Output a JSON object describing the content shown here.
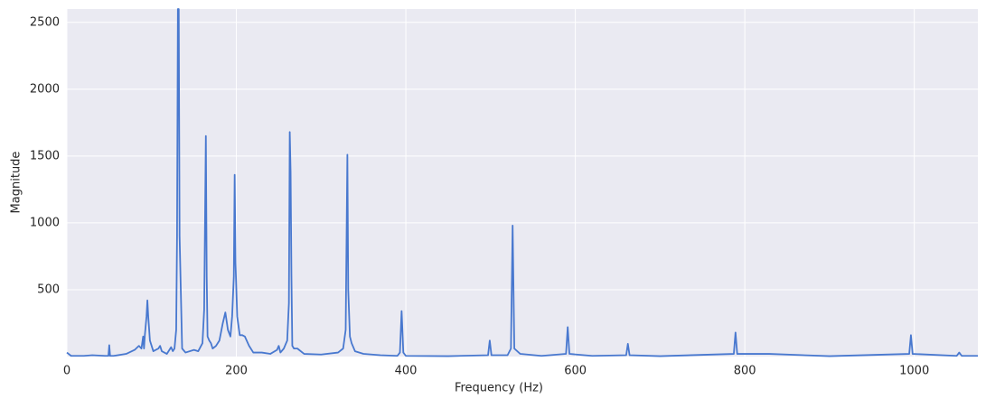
{
  "chart_data": {
    "type": "line",
    "x_label": "Frequency (Hz)",
    "y_label": "Magnitude",
    "color": "#4878cf",
    "background": "#eaeaf2",
    "grid": true,
    "xlim": [
      0,
      1075
    ],
    "ylim": [
      0,
      2600
    ],
    "xticks": [
      0,
      200,
      400,
      600,
      800,
      1000
    ],
    "yticks": [
      500,
      1000,
      1500,
      2000,
      2500
    ],
    "x": [
      0,
      5,
      20,
      30,
      45,
      49,
      50,
      51,
      55,
      70,
      80,
      85,
      88,
      90,
      91,
      92,
      94,
      95,
      96,
      98,
      102,
      108,
      110,
      112,
      118,
      123,
      125,
      127,
      129,
      130,
      131,
      132,
      133,
      136,
      140,
      150,
      155,
      160,
      162,
      164,
      165,
      166,
      168,
      170,
      172,
      176,
      180,
      184,
      187,
      190,
      193,
      195,
      197,
      198,
      199,
      201,
      204,
      207,
      210,
      215,
      220,
      230,
      240,
      248,
      250,
      252,
      256,
      260,
      262,
      263,
      264,
      265,
      266,
      268,
      272,
      280,
      300,
      320,
      326,
      329,
      331,
      332,
      334,
      336,
      340,
      350,
      370,
      390,
      393,
      395,
      397,
      400,
      450,
      497,
      499,
      501,
      520,
      524,
      526,
      528,
      535,
      560,
      589,
      591,
      593,
      620,
      660,
      662,
      664,
      700,
      787,
      789,
      791,
      829,
      900,
      994,
      996,
      998,
      1050,
      1053,
      1056,
      1075
    ],
    "values": [
      30,
      5,
      5,
      10,
      5,
      5,
      85,
      5,
      5,
      20,
      50,
      80,
      60,
      150,
      60,
      160,
      300,
      420,
      300,
      120,
      40,
      60,
      80,
      40,
      20,
      70,
      40,
      60,
      200,
      900,
      2600,
      2600,
      900,
      60,
      30,
      50,
      40,
      100,
      350,
      1650,
      600,
      150,
      120,
      100,
      60,
      80,
      120,
      250,
      330,
      200,
      150,
      300,
      600,
      1360,
      700,
      300,
      160,
      160,
      150,
      80,
      30,
      30,
      20,
      50,
      80,
      30,
      60,
      120,
      400,
      1680,
      1380,
      600,
      80,
      60,
      60,
      20,
      15,
      30,
      60,
      200,
      1510,
      500,
      150,
      100,
      40,
      20,
      10,
      5,
      30,
      340,
      30,
      5,
      3,
      10,
      120,
      10,
      10,
      60,
      980,
      60,
      20,
      5,
      20,
      220,
      20,
      5,
      10,
      95,
      10,
      3,
      20,
      180,
      20,
      20,
      3,
      20,
      160,
      20,
      5,
      30,
      5,
      5
    ]
  }
}
